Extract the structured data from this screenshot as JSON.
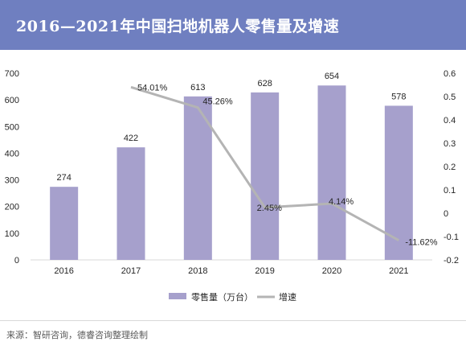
{
  "header": {
    "title": "2016—2021年中国扫地机器人零售量及增速"
  },
  "colors": {
    "header_bg": "#6f7fc0",
    "bar": "#a6a0cc",
    "line": "#b4b4b4",
    "text": "#262626",
    "axis": "#d9d9d9"
  },
  "chart_data": {
    "type": "bar+line",
    "categories": [
      "2016",
      "2017",
      "2018",
      "2019",
      "2020",
      "2021"
    ],
    "series": [
      {
        "name": "零售量（万台）",
        "type": "bar",
        "axis": "left",
        "values": [
          274,
          422,
          613,
          628,
          654,
          578
        ],
        "labels": [
          "274",
          "422",
          "613",
          "628",
          "654",
          "578"
        ]
      },
      {
        "name": "增速",
        "type": "line",
        "axis": "right",
        "values": [
          null,
          0.5401,
          0.4526,
          0.0245,
          0.0414,
          -0.1162
        ],
        "labels": [
          "",
          "54.01%",
          "45.26%",
          "2.45%",
          "4.14%",
          "-11.62%"
        ]
      }
    ],
    "y_left": {
      "min": 0,
      "max": 700,
      "step": 100,
      "ticks": [
        "0",
        "100",
        "200",
        "300",
        "400",
        "500",
        "600",
        "700"
      ]
    },
    "y_right": {
      "min": -0.2,
      "max": 0.6,
      "step": 0.1,
      "ticks": [
        "-0.2",
        "-0.1",
        "0",
        "0.1",
        "0.2",
        "0.3",
        "0.4",
        "0.5",
        "0.6"
      ]
    },
    "legend": {
      "position": "bottom",
      "items": [
        "零售量（万台）",
        "增速"
      ]
    },
    "grid": false
  },
  "footer": {
    "source": "来源：智研咨询，德睿咨询整理绘制"
  }
}
